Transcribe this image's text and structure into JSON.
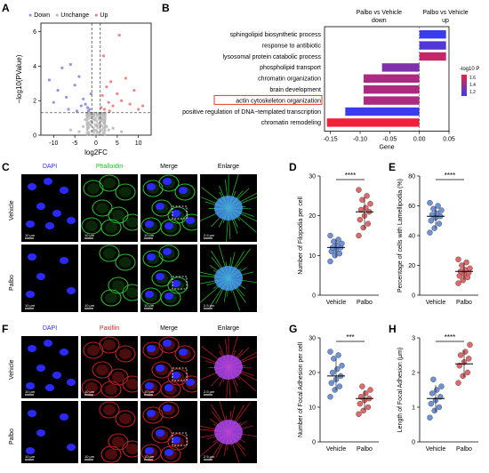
{
  "panels": {
    "A": "A",
    "B": "B",
    "C": "C",
    "D": "D",
    "E": "E",
    "F": "F",
    "G": "G",
    "H": "H"
  },
  "volcano": {
    "legend": [
      {
        "label": "Down",
        "color": "#8a8ae8"
      },
      {
        "label": "Unchange",
        "color": "#b8b8b8"
      },
      {
        "label": "Up",
        "color": "#f07a7a"
      }
    ],
    "ylabel": "−log10(PValue)",
    "xlabel": "log2FC",
    "xticks": [
      "-10",
      "-5",
      "0",
      "5",
      "10"
    ],
    "yticks": [
      "0",
      "2",
      "4",
      "6"
    ]
  },
  "go_chart": {
    "title_left": "Palbo vs Vehicle\ndown",
    "title_right": "Palbo vs Vehicle\nup",
    "xlabel": "Gene",
    "xticks": [
      "-0.15",
      "-0.10",
      "-0.05",
      "0.00",
      "0.05"
    ],
    "legend_title": "-log10 P",
    "legend_ticks": [
      "1.6",
      "1.4",
      "1.2"
    ],
    "highlight": "actin cytoskeleton organization"
  },
  "chart_data": [
    {
      "type": "scatter",
      "title": "",
      "xlabel": "log2FC",
      "ylabel": "−log10(PValue)",
      "xlim": [
        -13,
        13
      ],
      "ylim": [
        0,
        6.5
      ],
      "series": [
        {
          "name": "Down",
          "points": [
            [
              -11,
              3.2
            ],
            [
              -9,
              2.6
            ],
            [
              -8,
              3.9
            ],
            [
              -7,
              2.2
            ],
            [
              -6,
              4.1
            ],
            [
              -5,
              2.9
            ],
            [
              -4,
              3.4
            ],
            [
              -3,
              2.1
            ],
            [
              -2.5,
              1.8
            ],
            [
              -2,
              1.6
            ],
            [
              -1.5,
              1.5
            ],
            [
              -1.2,
              2.4
            ],
            [
              -3.5,
              1.7
            ],
            [
              -6.5,
              1.5
            ],
            [
              -10,
              1.9
            ],
            [
              -1.8,
              1.4
            ],
            [
              -4.5,
              1.4
            ]
          ]
        },
        {
          "name": "Unchange",
          "points": [
            [
              -0.5,
              0.3
            ],
            [
              0.3,
              0.5
            ],
            [
              -1,
              0.8
            ],
            [
              1,
              0.6
            ],
            [
              -2,
              0.4
            ],
            [
              2,
              0.7
            ],
            [
              -0.8,
              1.1
            ],
            [
              0.8,
              1.0
            ],
            [
              -3,
              0.5
            ],
            [
              3,
              0.3
            ],
            [
              -0.2,
              0.9
            ],
            [
              0.2,
              0.2
            ],
            [
              -1.4,
              0.6
            ],
            [
              1.4,
              0.9
            ],
            [
              -4,
              0.2
            ],
            [
              4,
              0.4
            ],
            [
              -6,
              0.3
            ],
            [
              6,
              0.2
            ],
            [
              0,
              0.6
            ],
            [
              -0.5,
              1.2
            ],
            [
              0.5,
              1.2
            ],
            [
              -2.5,
              0.9
            ],
            [
              2.5,
              0.5
            ]
          ]
        },
        {
          "name": "Up",
          "points": [
            [
              1.2,
              1.6
            ],
            [
              1.5,
              2.3
            ],
            [
              2,
              1.5
            ],
            [
              2.5,
              2.8
            ],
            [
              3,
              1.9
            ],
            [
              3.5,
              3.1
            ],
            [
              4,
              1.7
            ],
            [
              5,
              2.4
            ],
            [
              6,
              2.0
            ],
            [
              7,
              3.3
            ],
            [
              8,
              1.8
            ],
            [
              9,
              2.6
            ],
            [
              10,
              1.5
            ],
            [
              1.8,
              4.6
            ],
            [
              5.5,
              5.8
            ],
            [
              3.2,
              1.4
            ],
            [
              11,
              1.7
            ]
          ]
        }
      ],
      "threshold_y": 1.3,
      "threshold_x": [
        -1,
        1
      ]
    },
    {
      "type": "bar",
      "orientation": "horizontal",
      "xlabel": "Gene",
      "xlim": [
        -0.16,
        0.05
      ],
      "categories": [
        "sphingolipid biosynthetic process",
        "response to antibiotic",
        "lysosomal protein catabolic process",
        "phospholipid transport",
        "chromatin organization",
        "brain development",
        "actin cytoskeleton organization",
        "positive regulation of DNA−templated transcription",
        "chromatin remodeling"
      ],
      "values": [
        0.045,
        0.045,
        0.045,
        -0.063,
        -0.094,
        -0.094,
        -0.094,
        -0.125,
        -0.156
      ],
      "neg_log10_p": [
        1.2,
        1.25,
        1.5,
        1.35,
        1.45,
        1.45,
        1.45,
        1.2,
        1.6
      ],
      "color_scale": {
        "low": "#3b3bf0",
        "high": "#f0203b"
      }
    },
    {
      "type": "scatter",
      "title": "",
      "ylabel": "Number of Filopodia per cell",
      "categories": [
        "Vehicle",
        "Palbo"
      ],
      "ylim": [
        0,
        30
      ],
      "yticks": [
        "0",
        "10",
        "20",
        "30"
      ],
      "significance": "****",
      "series": [
        {
          "name": "Vehicle",
          "values": [
            8.5,
            10,
            10.5,
            11,
            11.5,
            12,
            12,
            12.5,
            13,
            13.5,
            14,
            15
          ],
          "mean": 12,
          "color": "#6f93d8"
        },
        {
          "name": "Palbo",
          "values": [
            15,
            17,
            18,
            19,
            20,
            21,
            21.5,
            22,
            23,
            24,
            25,
            26.5
          ],
          "mean": 21,
          "color": "#e06a6a"
        }
      ]
    },
    {
      "type": "scatter",
      "ylabel": "Percentage of cells with Lamellipodia (%)",
      "categories": [
        "Vehicle",
        "Palbo"
      ],
      "ylim": [
        0,
        80
      ],
      "yticks": [
        "0",
        "20",
        "40",
        "60",
        "80"
      ],
      "significance": "****",
      "series": [
        {
          "name": "Vehicle",
          "values": [
            42,
            45,
            48,
            50,
            52,
            53,
            54,
            55,
            57,
            58,
            60,
            62
          ],
          "mean": 53,
          "color": "#6f93d8"
        },
        {
          "name": "Palbo",
          "values": [
            8,
            10,
            12,
            13,
            14,
            15,
            16,
            17,
            18,
            20,
            22,
            24
          ],
          "mean": 16,
          "color": "#e06a6a"
        }
      ]
    },
    {
      "type": "scatter",
      "ylabel": "Number of Focal Adhesion per cell",
      "categories": [
        "Vehicle",
        "Palbo"
      ],
      "ylim": [
        0,
        30
      ],
      "yticks": [
        "0",
        "10",
        "20",
        "30"
      ],
      "significance": "***",
      "series": [
        {
          "name": "Vehicle",
          "values": [
            13,
            15,
            16,
            17,
            18,
            19,
            20,
            21,
            22,
            24,
            25,
            26
          ],
          "mean": 19,
          "color": "#6f93d8"
        },
        {
          "name": "Palbo",
          "values": [
            8,
            9,
            10,
            11,
            12,
            12.5,
            13,
            14,
            15,
            16
          ],
          "mean": 12.5,
          "color": "#e06a6a"
        }
      ]
    },
    {
      "type": "scatter",
      "ylabel": "Length of Focal Adhesion (μm)",
      "categories": [
        "Vehicle",
        "Palbo"
      ],
      "ylim": [
        0,
        3
      ],
      "yticks": [
        "0",
        "1",
        "2",
        "3"
      ],
      "significance": "****",
      "series": [
        {
          "name": "Vehicle",
          "values": [
            0.7,
            0.9,
            1.0,
            1.1,
            1.2,
            1.3,
            1.4,
            1.5,
            1.6,
            1.8
          ],
          "mean": 1.25,
          "color": "#6f93d8"
        },
        {
          "name": "Palbo",
          "values": [
            1.7,
            1.9,
            2.0,
            2.2,
            2.3,
            2.4,
            2.5,
            2.6,
            2.8
          ],
          "mean": 2.25,
          "color": "#e06a6a"
        }
      ]
    }
  ],
  "micro_c": {
    "columns": [
      "DAPI",
      "Phalloidin",
      "Merge",
      "Enlarge"
    ],
    "column_colors": [
      "#3030ff",
      "#20c020",
      "#000000",
      "#000000"
    ],
    "rows": [
      "Vehicle",
      "Palbo"
    ],
    "scalebar": "10 μm",
    "scalebar_enlarge": "2.5 μm"
  },
  "micro_f": {
    "columns": [
      "DAPI",
      "Paxillin",
      "Merge",
      "Enlarge"
    ],
    "column_colors": [
      "#3030ff",
      "#e02020",
      "#000000",
      "#000000"
    ],
    "rows": [
      "Vehicle",
      "Palbo"
    ],
    "scalebar": "10 μm",
    "scalebar_enlarge": "2.5 μm"
  },
  "dotplot_categories": [
    "Vehicle",
    "Palbo"
  ]
}
